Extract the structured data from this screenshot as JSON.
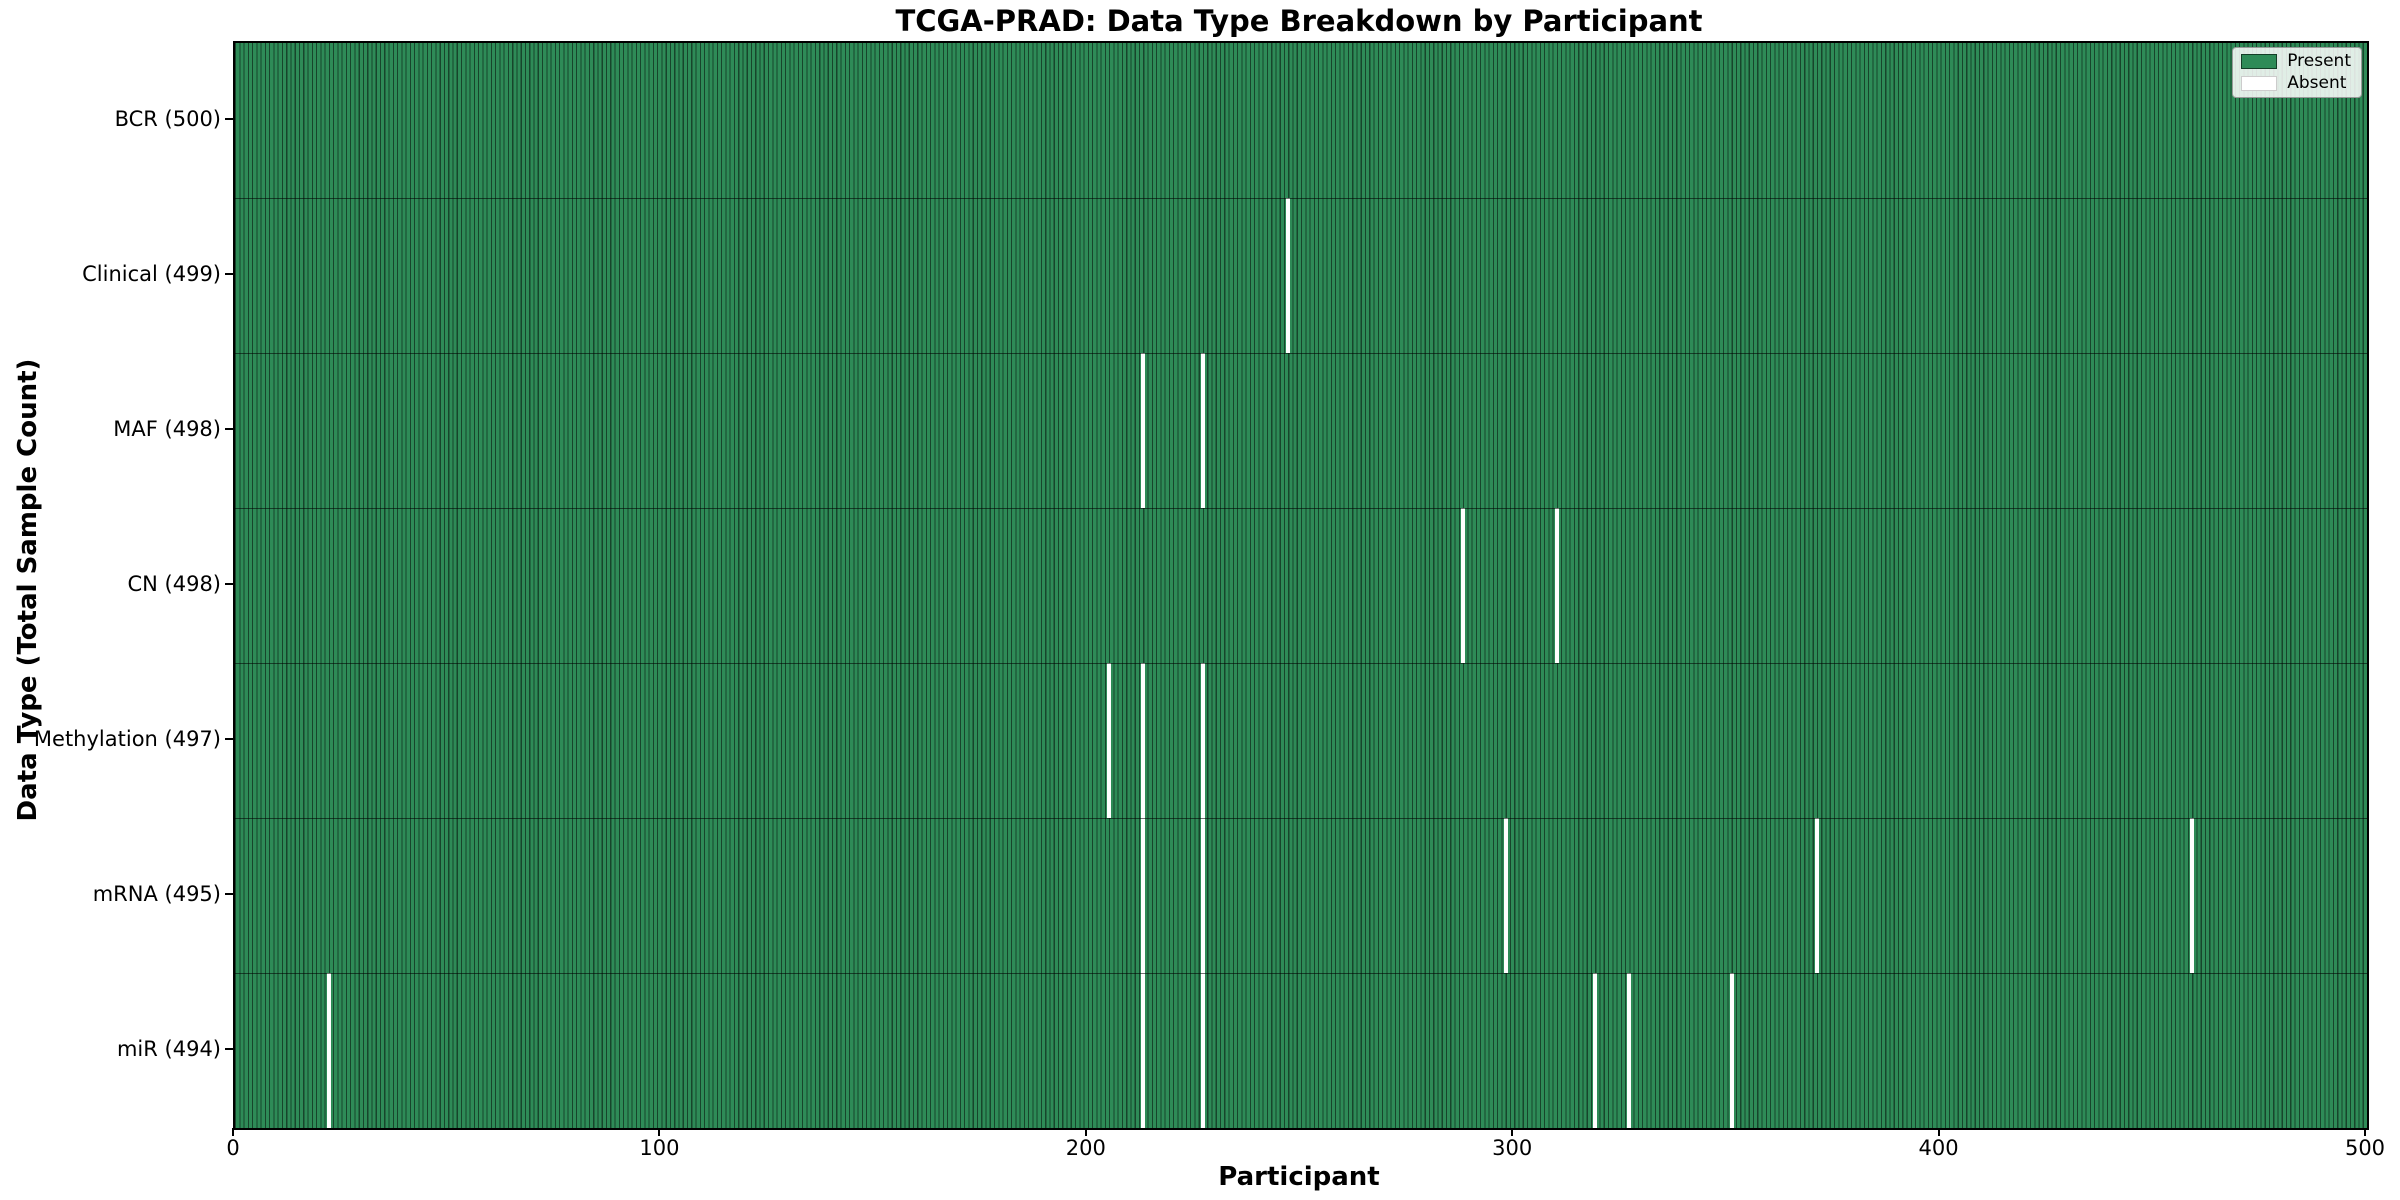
{
  "chart_data": {
    "type": "heatmap",
    "title": "TCGA-PRAD: Data Type Breakdown by Participant",
    "xlabel": "Participant",
    "ylabel": "Data Type (Total Sample Count)",
    "x_range": [
      0,
      500
    ],
    "x_ticks": [
      "0",
      "100",
      "200",
      "300",
      "400",
      "500"
    ],
    "n_participants": 500,
    "grid": false,
    "legend_position": "upper right",
    "legend": {
      "present_label": "Present",
      "absent_label": "Absent"
    },
    "colors": {
      "present": "#2e8b57",
      "absent": "#ffffff",
      "bar_edge": "rgba(0,0,0,0.5)"
    },
    "rows": [
      {
        "label": "BCR (500)",
        "data_type": "BCR",
        "total": 500,
        "absent_participants": []
      },
      {
        "label": "Clinical (499)",
        "data_type": "Clinical",
        "total": 499,
        "absent_participants": [
          247
        ]
      },
      {
        "label": "MAF (498)",
        "data_type": "MAF",
        "total": 498,
        "absent_participants": [
          213,
          227
        ]
      },
      {
        "label": "CN (498)",
        "data_type": "CN",
        "total": 498,
        "absent_participants": [
          288,
          310
        ]
      },
      {
        "label": "Methylation (497)",
        "data_type": "Methylation",
        "total": 497,
        "absent_participants": [
          205,
          213,
          227
        ]
      },
      {
        "label": "mRNA (495)",
        "data_type": "mRNA",
        "total": 495,
        "absent_participants": [
          213,
          227,
          298,
          371,
          459
        ]
      },
      {
        "label": "miR (494)",
        "data_type": "miR",
        "total": 494,
        "absent_participants": [
          22,
          213,
          227,
          319,
          327,
          351
        ]
      }
    ]
  }
}
